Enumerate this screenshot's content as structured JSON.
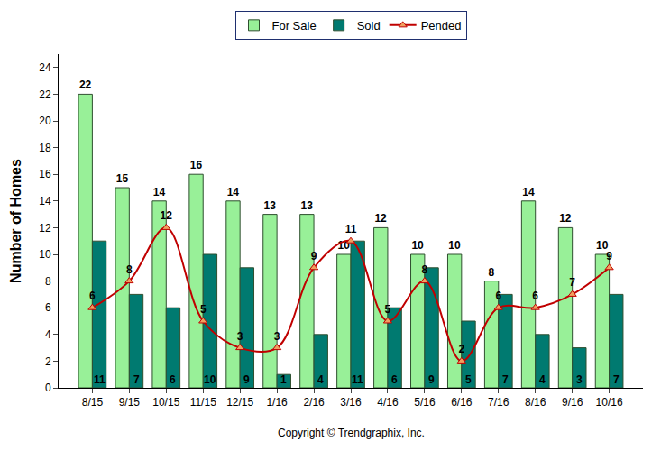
{
  "chart_data": {
    "type": "bar",
    "categories": [
      "8/15",
      "9/15",
      "10/15",
      "11/15",
      "12/15",
      "1/16",
      "2/16",
      "3/16",
      "4/16",
      "5/16",
      "6/16",
      "7/16",
      "8/16",
      "9/16",
      "10/16"
    ],
    "series": [
      {
        "name": "For Sale",
        "type": "bar",
        "color": "#98f098",
        "values": [
          22,
          15,
          14,
          16,
          14,
          13,
          13,
          10,
          12,
          10,
          10,
          8,
          14,
          12,
          10
        ]
      },
      {
        "name": "Sold",
        "type": "bar",
        "color": "#007a70",
        "values": [
          11,
          7,
          6,
          10,
          9,
          1,
          4,
          11,
          6,
          9,
          5,
          7,
          4,
          3,
          7
        ]
      },
      {
        "name": "Pended",
        "type": "line",
        "color": "#c00000",
        "marker": "triangle-up",
        "line_style": "solid",
        "values": [
          6,
          8,
          12,
          5,
          3,
          3,
          9,
          11,
          5,
          8,
          2,
          6,
          6,
          7,
          9
        ]
      }
    ],
    "ylabel": "Number of Homes",
    "ylim": [
      0,
      25
    ],
    "yticks": [
      0,
      2,
      4,
      6,
      8,
      10,
      12,
      14,
      16,
      18,
      20,
      22,
      24
    ],
    "grid": false,
    "legend": "top",
    "data_labels": true,
    "annotations": [
      "Copyright © Trendgraphix, Inc."
    ]
  }
}
